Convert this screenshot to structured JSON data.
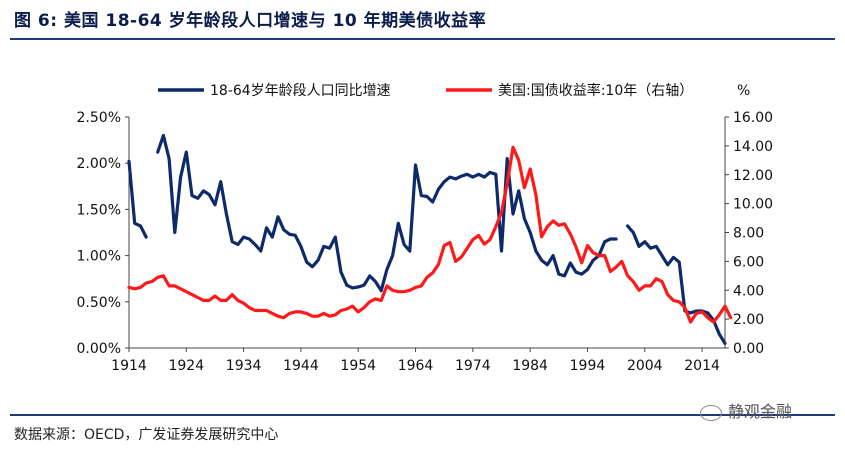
{
  "figure": {
    "title": "图 6:  美国 18-64 岁年龄段人口增速与 10 年期美债收益率",
    "source": "数据来源：OECD，广发证券发展研究中心",
    "watermark": "静观金融",
    "watermark_icon": "wechat-icon"
  },
  "chart_data": {
    "type": "line",
    "legend_placement": "top",
    "grid": false,
    "right_axis_unit": "%",
    "x": {
      "ticks": [
        1914,
        1924,
        1934,
        1944,
        1954,
        1964,
        1974,
        1984,
        1994,
        2004,
        2014
      ],
      "range": [
        1914,
        2018
      ]
    },
    "y_left": {
      "range": [
        0,
        0.025
      ],
      "ticks": [
        "0.00%",
        "0.50%",
        "1.00%",
        "1.50%",
        "2.00%",
        "2.50%"
      ]
    },
    "y_right": {
      "range": [
        0,
        16
      ],
      "ticks": [
        "0.00",
        "2.00",
        "4.00",
        "6.00",
        "8.00",
        "10.00",
        "12.00",
        "14.00",
        "16.00"
      ]
    },
    "series": [
      {
        "name": "18-64岁年龄段人口同比增速",
        "axis": "left",
        "color": "#0d2a6b",
        "segments": [
          [
            [
              1914,
              2.02
            ],
            [
              1915,
              1.35
            ],
            [
              1916,
              1.32
            ],
            [
              1917,
              1.2
            ]
          ],
          [
            [
              1919,
              2.12
            ],
            [
              1920,
              2.3
            ],
            [
              1921,
              2.05
            ],
            [
              1922,
              1.25
            ],
            [
              1923,
              1.85
            ],
            [
              1924,
              2.12
            ],
            [
              1925,
              1.65
            ],
            [
              1926,
              1.62
            ],
            [
              1927,
              1.7
            ],
            [
              1928,
              1.66
            ],
            [
              1929,
              1.55
            ],
            [
              1930,
              1.8
            ],
            [
              1931,
              1.45
            ],
            [
              1932,
              1.15
            ],
            [
              1933,
              1.12
            ],
            [
              1934,
              1.2
            ],
            [
              1935,
              1.18
            ],
            [
              1936,
              1.12
            ],
            [
              1937,
              1.05
            ],
            [
              1938,
              1.3
            ],
            [
              1939,
              1.2
            ],
            [
              1940,
              1.42
            ],
            [
              1941,
              1.28
            ],
            [
              1942,
              1.23
            ],
            [
              1943,
              1.22
            ],
            [
              1944,
              1.1
            ],
            [
              1945,
              0.93
            ],
            [
              1946,
              0.88
            ],
            [
              1947,
              0.95
            ],
            [
              1948,
              1.1
            ],
            [
              1949,
              1.08
            ],
            [
              1950,
              1.2
            ],
            [
              1951,
              0.82
            ],
            [
              1952,
              0.68
            ],
            [
              1953,
              0.65
            ],
            [
              1954,
              0.66
            ],
            [
              1955,
              0.68
            ],
            [
              1956,
              0.78
            ],
            [
              1957,
              0.72
            ],
            [
              1958,
              0.62
            ],
            [
              1959,
              0.85
            ],
            [
              1960,
              1.0
            ],
            [
              1961,
              1.35
            ],
            [
              1962,
              1.12
            ],
            [
              1963,
              1.05
            ],
            [
              1964,
              1.98
            ],
            [
              1965,
              1.65
            ],
            [
              1966,
              1.64
            ],
            [
              1967,
              1.58
            ],
            [
              1968,
              1.72
            ],
            [
              1969,
              1.8
            ],
            [
              1970,
              1.85
            ],
            [
              1971,
              1.83
            ],
            [
              1972,
              1.86
            ],
            [
              1973,
              1.88
            ],
            [
              1974,
              1.85
            ],
            [
              1975,
              1.88
            ],
            [
              1976,
              1.85
            ],
            [
              1977,
              1.9
            ],
            [
              1978,
              1.88
            ],
            [
              1979,
              1.05
            ],
            [
              1980,
              2.05
            ],
            [
              1981,
              1.45
            ],
            [
              1982,
              1.7
            ],
            [
              1983,
              1.4
            ],
            [
              1984,
              1.25
            ],
            [
              1985,
              1.05
            ],
            [
              1986,
              0.95
            ],
            [
              1987,
              0.9
            ],
            [
              1988,
              1.0
            ],
            [
              1989,
              0.8
            ],
            [
              1990,
              0.78
            ],
            [
              1991,
              0.92
            ],
            [
              1992,
              0.82
            ],
            [
              1993,
              0.8
            ],
            [
              1994,
              0.85
            ],
            [
              1995,
              0.95
            ],
            [
              1996,
              1.0
            ],
            [
              1997,
              1.15
            ],
            [
              1998,
              1.18
            ],
            [
              1999,
              1.18
            ]
          ],
          [
            [
              2001,
              1.32
            ],
            [
              2002,
              1.25
            ],
            [
              2003,
              1.1
            ],
            [
              2004,
              1.15
            ],
            [
              2005,
              1.08
            ],
            [
              2006,
              1.1
            ],
            [
              2007,
              1.0
            ],
            [
              2008,
              0.9
            ],
            [
              2009,
              0.98
            ],
            [
              2010,
              0.93
            ],
            [
              2011,
              0.4
            ],
            [
              2012,
              0.38
            ],
            [
              2013,
              0.4
            ],
            [
              2014,
              0.4
            ],
            [
              2015,
              0.38
            ],
            [
              2016,
              0.3
            ],
            [
              2017,
              0.15
            ],
            [
              2018,
              0.05
            ]
          ]
        ]
      },
      {
        "name": "美国:国债收益率:10年（右轴）",
        "axis": "right",
        "color": "#ff1a1a",
        "segments": [
          [
            [
              1914,
              4.2
            ],
            [
              1915,
              4.1
            ],
            [
              1916,
              4.2
            ],
            [
              1917,
              4.5
            ],
            [
              1918,
              4.6
            ],
            [
              1919,
              4.9
            ],
            [
              1920,
              5.0
            ],
            [
              1921,
              4.3
            ],
            [
              1922,
              4.3
            ],
            [
              1923,
              4.1
            ],
            [
              1924,
              3.9
            ],
            [
              1925,
              3.7
            ],
            [
              1926,
              3.5
            ],
            [
              1927,
              3.3
            ],
            [
              1928,
              3.3
            ],
            [
              1929,
              3.6
            ],
            [
              1930,
              3.3
            ],
            [
              1931,
              3.3
            ],
            [
              1932,
              3.7
            ],
            [
              1933,
              3.3
            ],
            [
              1934,
              3.1
            ],
            [
              1935,
              2.8
            ],
            [
              1936,
              2.6
            ],
            [
              1937,
              2.6
            ],
            [
              1938,
              2.6
            ],
            [
              1939,
              2.4
            ],
            [
              1940,
              2.2
            ],
            [
              1941,
              2.1
            ],
            [
              1942,
              2.4
            ],
            [
              1943,
              2.5
            ],
            [
              1944,
              2.5
            ],
            [
              1945,
              2.4
            ],
            [
              1946,
              2.2
            ],
            [
              1947,
              2.2
            ],
            [
              1948,
              2.4
            ],
            [
              1949,
              2.2
            ],
            [
              1950,
              2.3
            ],
            [
              1951,
              2.6
            ],
            [
              1952,
              2.7
            ],
            [
              1953,
              2.9
            ],
            [
              1954,
              2.5
            ],
            [
              1955,
              2.8
            ],
            [
              1956,
              3.2
            ],
            [
              1957,
              3.4
            ],
            [
              1958,
              3.3
            ],
            [
              1959,
              4.3
            ],
            [
              1960,
              4.0
            ],
            [
              1961,
              3.9
            ],
            [
              1962,
              3.9
            ],
            [
              1963,
              4.0
            ],
            [
              1964,
              4.2
            ],
            [
              1965,
              4.3
            ],
            [
              1966,
              4.9
            ],
            [
              1967,
              5.2
            ],
            [
              1968,
              5.8
            ],
            [
              1969,
              7.1
            ],
            [
              1970,
              7.3
            ],
            [
              1971,
              6.0
            ],
            [
              1972,
              6.3
            ],
            [
              1973,
              6.9
            ],
            [
              1974,
              7.5
            ],
            [
              1975,
              7.8
            ],
            [
              1976,
              7.2
            ],
            [
              1977,
              7.5
            ],
            [
              1978,
              8.4
            ],
            [
              1979,
              9.4
            ],
            [
              1980,
              11.4
            ],
            [
              1981,
              13.9
            ],
            [
              1982,
              13.0
            ],
            [
              1983,
              11.1
            ],
            [
              1984,
              12.4
            ],
            [
              1985,
              10.6
            ],
            [
              1986,
              7.7
            ],
            [
              1987,
              8.4
            ],
            [
              1988,
              8.8
            ],
            [
              1989,
              8.5
            ],
            [
              1990,
              8.6
            ],
            [
              1991,
              7.9
            ],
            [
              1992,
              7.0
            ],
            [
              1993,
              5.9
            ],
            [
              1994,
              7.1
            ],
            [
              1995,
              6.6
            ],
            [
              1996,
              6.4
            ],
            [
              1997,
              6.4
            ],
            [
              1998,
              5.3
            ],
            [
              1999,
              5.6
            ],
            [
              2000,
              6.0
            ],
            [
              2001,
              5.0
            ],
            [
              2002,
              4.6
            ],
            [
              2003,
              4.0
            ],
            [
              2004,
              4.3
            ],
            [
              2005,
              4.3
            ],
            [
              2006,
              4.8
            ],
            [
              2007,
              4.6
            ],
            [
              2008,
              3.7
            ],
            [
              2009,
              3.3
            ],
            [
              2010,
              3.2
            ],
            [
              2011,
              2.8
            ],
            [
              2012,
              1.8
            ],
            [
              2013,
              2.4
            ],
            [
              2014,
              2.5
            ],
            [
              2015,
              2.1
            ],
            [
              2016,
              1.8
            ],
            [
              2017,
              2.3
            ],
            [
              2018,
              2.9
            ],
            [
              2019,
              2.1
            ]
          ]
        ]
      }
    ]
  }
}
